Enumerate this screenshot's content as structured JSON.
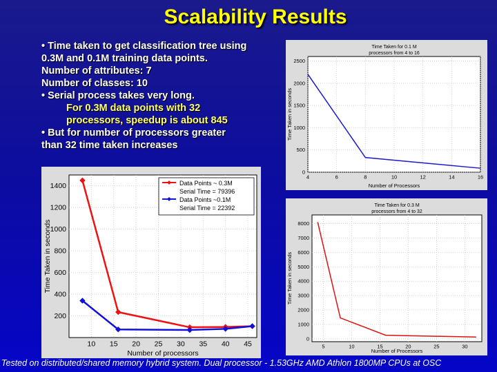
{
  "slide": {
    "title": "Scalability Results",
    "bullets": [
      "• Time taken to get classification tree using",
      "0.3M and 0.1M training data points.",
      "Number of attributes: 7",
      "Number of classes: 10",
      "• Serial process takes very long.",
      "For 0.3M data points with 32",
      "processors, speedup is about 845",
      "• But for number of processors greater",
      "than 32 time taken increases"
    ],
    "footer": "Tested on distributed/shared memory hybrid system. Dual processor - 1.53GHz AMD Athlon 1800MP CPUs at OSC"
  },
  "chart_data": [
    {
      "type": "line",
      "title": "",
      "xlabel": "Number of processors",
      "ylabel": "Time Taken in seconds",
      "xlim": [
        5,
        47
      ],
      "ylim": [
        0,
        1500
      ],
      "xticks": [
        10,
        15,
        20,
        25,
        30,
        35,
        40,
        45
      ],
      "yticks": [
        200,
        400,
        600,
        800,
        1000,
        1200,
        1400
      ],
      "grid": true,
      "legend_position": "top-right",
      "legend": [
        "Data Points ~ 0.3M",
        "Serial Time = 79396",
        "Data Points ~0.1M",
        "Serial Time = 22392"
      ],
      "series": [
        {
          "name": "Data Points ~ 0.3M",
          "color": "#ee1111",
          "x": [
            8,
            16,
            32,
            40,
            46
          ],
          "y": [
            1450,
            235,
            95,
            98,
            105
          ]
        },
        {
          "name": "Data Points ~0.1M",
          "color": "#1111dd",
          "x": [
            8,
            16,
            32,
            40,
            46
          ],
          "y": [
            340,
            75,
            70,
            80,
            105
          ]
        }
      ]
    },
    {
      "type": "line",
      "title": "Time Taken for 0.1 M processors from 4 to 16",
      "xlabel": "Number of Processors",
      "ylabel": "Time Taken in seconds",
      "xlim": [
        4,
        16
      ],
      "ylim": [
        0,
        2600
      ],
      "xticks": [
        4,
        6,
        8,
        10,
        12,
        14,
        16
      ],
      "yticks": [
        0,
        500,
        1000,
        1500,
        2000,
        2500
      ],
      "grid": true,
      "series": [
        {
          "color": "#1a1acc",
          "x": [
            4,
            8,
            16
          ],
          "y": [
            2200,
            330,
            90
          ]
        }
      ]
    },
    {
      "type": "line",
      "title": "Time Taken for 0.3 M processors from 4 to 32",
      "xlabel": "Number of Processors",
      "ylabel": "Time Taken in seconds",
      "xlim": [
        3,
        33
      ],
      "ylim": [
        -200,
        8600
      ],
      "xticks": [
        5,
        10,
        15,
        20,
        25,
        30
      ],
      "yticks": [
        0,
        1000,
        2000,
        3000,
        4000,
        5000,
        6000,
        7000,
        8000
      ],
      "grid": true,
      "series": [
        {
          "color": "#dd1111",
          "x": [
            4,
            8,
            16,
            32
          ],
          "y": [
            8100,
            1450,
            250,
            120
          ]
        }
      ]
    }
  ]
}
